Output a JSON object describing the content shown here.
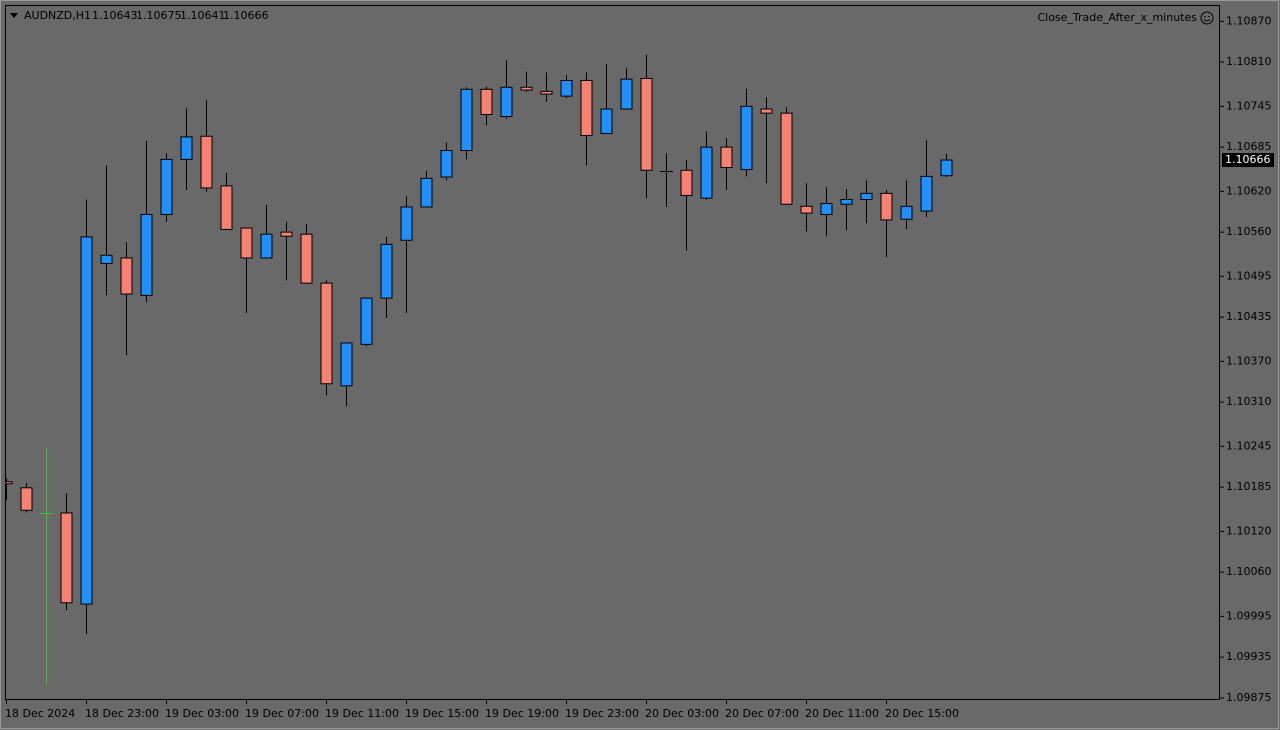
{
  "chart_data": {
    "type": "candlestick",
    "title": "AUDNZD,H1",
    "expert": "Close_Trade_After_x_minutes",
    "categories": [
      "18 Dec 2024",
      null,
      null,
      null,
      "18 Dec 23:00",
      null,
      null,
      null,
      "19 Dec 03:00",
      null,
      null,
      null,
      "19 Dec 07:00",
      null,
      null,
      null,
      "19 Dec 11:00",
      null,
      null,
      null,
      "19 Dec 15:00",
      null,
      null,
      null,
      "19 Dec 19:00",
      null,
      null,
      null,
      "19 Dec 23:00",
      null,
      null,
      null,
      "20 Dec 03:00",
      null,
      null,
      null,
      "20 Dec 07:00",
      null,
      null,
      null,
      "20 Dec 11:00",
      null,
      null,
      null,
      "20 Dec 15:00",
      null,
      null,
      null
    ],
    "open": [
      1.10193,
      1.10184,
      1.10147,
      1.10147,
      1.10013,
      1.10514,
      1.10522,
      1.10467,
      1.10586,
      1.10667,
      1.10701,
      1.10628,
      1.10566,
      1.10522,
      1.1056,
      1.10557,
      1.10485,
      1.10334,
      1.10395,
      1.10463,
      1.10548,
      1.10597,
      1.10641,
      1.1068,
      1.1077,
      1.1073,
      1.10773,
      1.10767,
      1.1076,
      1.10783,
      1.10705,
      1.10741,
      1.10786,
      1.1065,
      1.10651,
      1.1061,
      1.10685,
      1.10652,
      1.10741,
      1.10735,
      1.10598,
      1.10586,
      1.10601,
      1.10608,
      1.10617,
      1.10579,
      1.10591,
      1.10643
    ],
    "high": [
      1.10198,
      1.10191,
      1.10242,
      1.10176,
      1.10608,
      1.10658,
      1.10545,
      1.10694,
      1.10676,
      1.10742,
      1.10754,
      1.10647,
      1.10566,
      1.106,
      1.10575,
      1.10572,
      1.10489,
      1.10397,
      1.10463,
      1.10553,
      1.10613,
      1.1065,
      1.10692,
      1.10773,
      1.10774,
      1.10813,
      1.10796,
      1.10795,
      1.10791,
      1.10795,
      1.10807,
      1.10801,
      1.10821,
      1.10676,
      1.10666,
      1.10708,
      1.10698,
      1.10771,
      1.10758,
      1.10744,
      1.10632,
      1.10626,
      1.10623,
      1.10636,
      1.10622,
      1.10636,
      1.10695,
      1.10675
    ],
    "low": [
      1.10166,
      1.10148,
      1.09894,
      1.10004,
      1.09969,
      1.10467,
      1.10379,
      1.10457,
      1.10575,
      1.10622,
      1.10619,
      1.10564,
      1.10441,
      1.10522,
      1.10489,
      1.10485,
      1.1032,
      1.10304,
      1.10392,
      1.10434,
      1.10441,
      1.10597,
      1.10636,
      1.10667,
      1.10717,
      1.10727,
      1.10766,
      1.10752,
      1.10757,
      1.10658,
      1.10705,
      1.10741,
      1.1061,
      1.10597,
      1.10533,
      1.10607,
      1.10622,
      1.10642,
      1.10632,
      1.10601,
      1.10561,
      1.10554,
      1.10563,
      1.10573,
      1.10523,
      1.10564,
      1.10582,
      1.10641
    ],
    "close": [
      1.1019,
      1.10151,
      1.10147,
      1.10015,
      1.10553,
      1.10526,
      1.10469,
      1.10586,
      1.10667,
      1.107,
      1.10625,
      1.10564,
      1.10522,
      1.10557,
      1.10554,
      1.10485,
      1.10337,
      1.10397,
      1.10463,
      1.10542,
      1.10597,
      1.10639,
      1.1068,
      1.1077,
      1.10733,
      1.10773,
      1.10769,
      1.10763,
      1.10783,
      1.10702,
      1.10741,
      1.10785,
      1.10651,
      1.1065,
      1.10614,
      1.10685,
      1.10655,
      1.10745,
      1.10735,
      1.10601,
      1.10588,
      1.10602,
      1.10608,
      1.10617,
      1.10578,
      1.10598,
      1.10642,
      1.10666
    ],
    "ylim": [
      1.09872,
      1.10894
    ],
    "yticks": [
      {
        "value": 1.1087,
        "label": "1.10870"
      },
      {
        "value": 1.1081,
        "label": "1.10810"
      },
      {
        "value": 1.10745,
        "label": "1.10745"
      },
      {
        "value": 1.10685,
        "label": "1.10685"
      },
      {
        "value": 1.1062,
        "label": "1.10620"
      },
      {
        "value": 1.1056,
        "label": "1.10560"
      },
      {
        "value": 1.10495,
        "label": "1.10495"
      },
      {
        "value": 1.10435,
        "label": "1.10435"
      },
      {
        "value": 1.1037,
        "label": "1.10370"
      },
      {
        "value": 1.1031,
        "label": "1.10310"
      },
      {
        "value": 1.10245,
        "label": "1.10245"
      },
      {
        "value": 1.10185,
        "label": "1.10185"
      },
      {
        "value": 1.1012,
        "label": "1.10120"
      },
      {
        "value": 1.1006,
        "label": "1.10060"
      },
      {
        "value": 1.09995,
        "label": "1.09995"
      },
      {
        "value": 1.09935,
        "label": "1.09935"
      },
      {
        "value": 1.09875,
        "label": "1.09875"
      }
    ],
    "up_color": "#1e90ff",
    "down_color": "#fa8072",
    "doji_color": "#000000",
    "highlight": {
      "index": 2,
      "color": "#32cd32"
    }
  }
}
